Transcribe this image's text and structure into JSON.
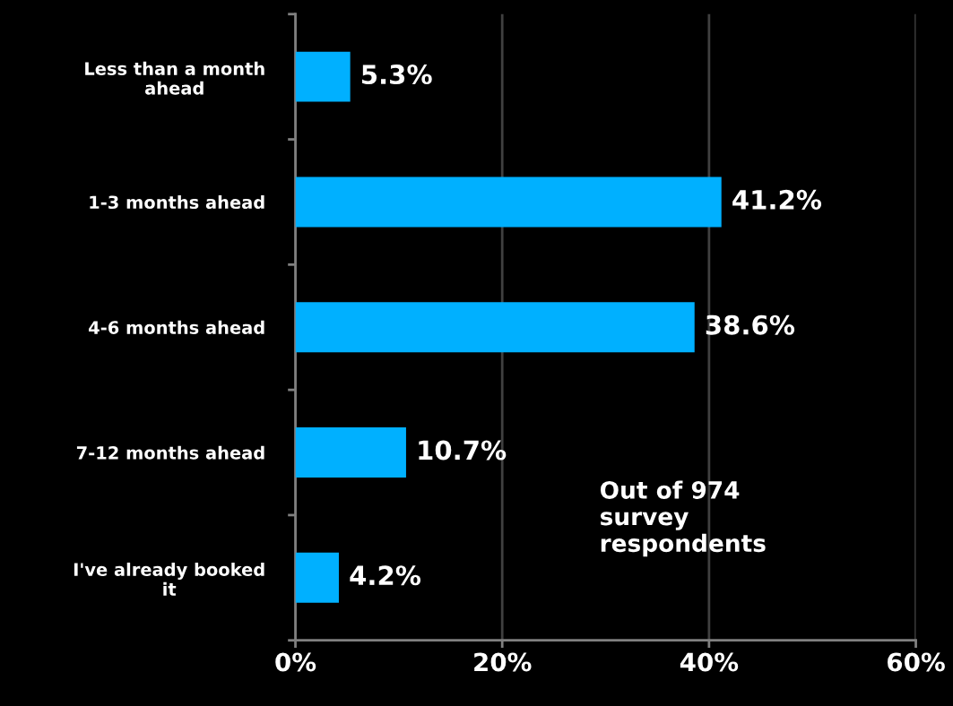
{
  "chart_data": {
    "type": "bar",
    "orientation": "horizontal",
    "categories": [
      "Less than a month\nahead",
      "1-3 months ahead",
      "4-6 months ahead",
      "7-12 months ahead",
      "I've already booked\nit"
    ],
    "values": [
      5.3,
      41.2,
      38.6,
      10.7,
      4.2
    ],
    "value_labels": [
      "5.3%",
      "41.2%",
      "38.6%",
      "10.7%",
      "4.2%"
    ],
    "color": "#00b0ff",
    "xlim": [
      0,
      60
    ],
    "xticks": [
      {
        "value": 0,
        "label": "0%"
      },
      {
        "value": 20,
        "label": "20%"
      },
      {
        "value": 40,
        "label": "40%"
      },
      {
        "value": 60,
        "label": "60%"
      }
    ],
    "grid": "x",
    "legend": false,
    "annotations": [
      "Out of 974\nsurvey\nrespondents"
    ]
  }
}
